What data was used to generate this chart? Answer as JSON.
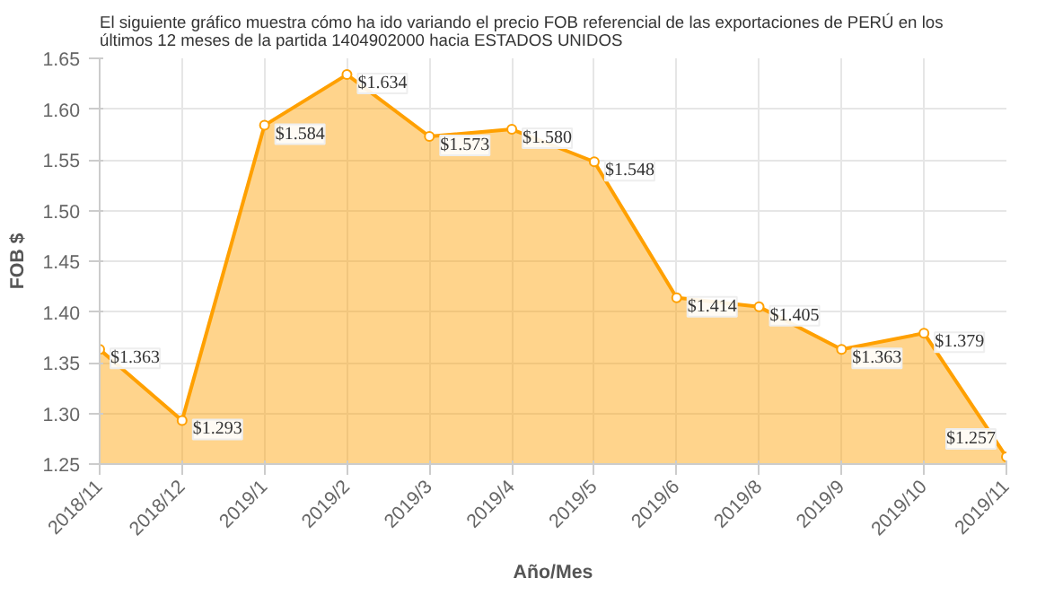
{
  "chart_data": {
    "type": "area",
    "title": "El siguiente gráfico muestra cómo ha ido variando el precio FOB referencial de las exportaciones de PERÚ en los últimos 12 meses de la partida 1404902000 hacia ESTADOS UNIDOS",
    "xlabel": "Año/Mes",
    "ylabel": "FOB $",
    "categories": [
      "2018/11",
      "2018/12",
      "2019/1",
      "2019/2",
      "2019/3",
      "2019/4",
      "2019/5",
      "2019/6",
      "2019/8",
      "2019/9",
      "2019/10",
      "2019/11"
    ],
    "series": [
      {
        "color": "#ffa000",
        "values": [
          1.363,
          1.293,
          1.584,
          1.634,
          1.573,
          1.58,
          1.548,
          1.414,
          1.405,
          1.363,
          1.379,
          1.257
        ],
        "value_labels": [
          "$1.363",
          "$1.293",
          "$1.584",
          "$1.634",
          "$1.573",
          "$1.580",
          "$1.548",
          "$1.414",
          "$1.405",
          "$1.363",
          "$1.379",
          "$1.257"
        ]
      }
    ],
    "ylim": [
      1.25,
      1.65
    ],
    "yticks": [
      1.25,
      {
        "value": 1.3,
        "label": "1.30"
      },
      1.35,
      {
        "value": 1.4,
        "label": "1.40"
      },
      1.45,
      {
        "value": 1.5,
        "label": "1.50"
      },
      1.55,
      {
        "value": 1.6,
        "label": "1.60"
      },
      1.65
    ],
    "grid": true,
    "marker": "circle"
  }
}
